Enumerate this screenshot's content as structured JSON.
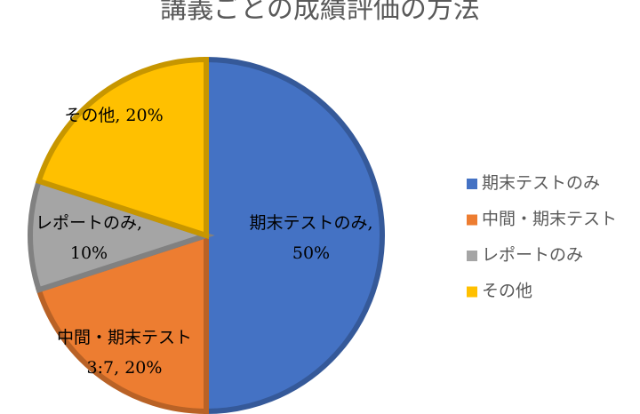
{
  "chart_data": {
    "type": "pie",
    "title": "講義ごとの成績評価の方法",
    "categories": [
      "期末テストのみ",
      "中間・期末テスト",
      "レポートのみ",
      "その他"
    ],
    "values": [
      50,
      20,
      10,
      20
    ],
    "value_labels": [
      "期末テストのみ, 50%",
      "中間・期末テスト3:7, 20%",
      "レポートのみ, 10%",
      "その他, 20%"
    ],
    "colors": [
      "#4472c4",
      "#ed7d31",
      "#a5a5a5",
      "#ffc000"
    ],
    "legend": "right"
  }
}
